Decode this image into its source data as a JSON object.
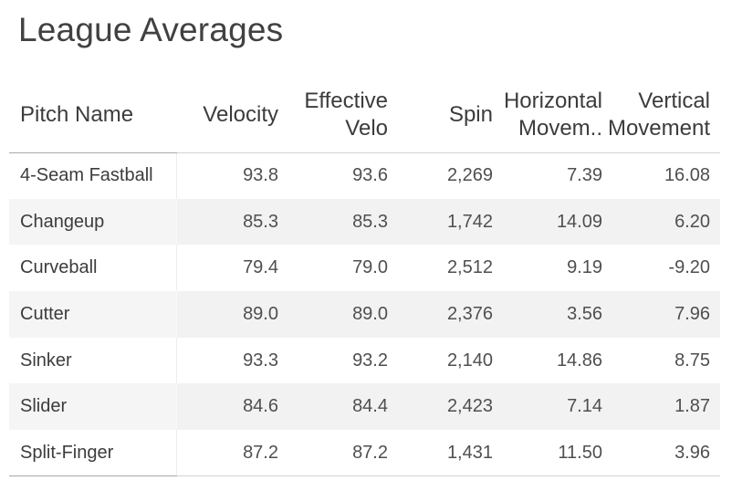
{
  "title": "League Averages",
  "table": {
    "columns": [
      {
        "id": "pitch_name",
        "label": "Pitch Name"
      },
      {
        "id": "velocity",
        "label": "Velocity"
      },
      {
        "id": "effective_velo",
        "label": "Effective\nVelo"
      },
      {
        "id": "spin",
        "label": "Spin"
      },
      {
        "id": "horizontal_movement",
        "label": "Horizontal\nMovem.."
      },
      {
        "id": "vertical_movement",
        "label": "Vertical\nMovement"
      }
    ],
    "rows": [
      {
        "pitch": "4-Seam Fastball",
        "values": [
          "93.8",
          "93.6",
          "2,269",
          "7.39",
          "16.08"
        ]
      },
      {
        "pitch": "Changeup",
        "values": [
          "85.3",
          "85.3",
          "1,742",
          "14.09",
          "6.20"
        ]
      },
      {
        "pitch": "Curveball",
        "values": [
          "79.4",
          "79.0",
          "2,512",
          "9.19",
          "-9.20"
        ]
      },
      {
        "pitch": "Cutter",
        "values": [
          "89.0",
          "89.0",
          "2,376",
          "3.56",
          "7.96"
        ]
      },
      {
        "pitch": "Sinker",
        "values": [
          "93.3",
          "93.2",
          "2,140",
          "14.86",
          "8.75"
        ]
      },
      {
        "pitch": "Slider",
        "values": [
          "84.6",
          "84.4",
          "2,423",
          "7.14",
          "1.87"
        ]
      },
      {
        "pitch": "Split-Finger",
        "values": [
          "87.2",
          "87.2",
          "1,431",
          "11.50",
          "3.96"
        ]
      }
    ]
  },
  "colors": {
    "row_band": "#f2f2f2",
    "row_band_header_col": "#f5f5f5",
    "border_dark": "#a8a8a8",
    "border_light": "#d2d2d2",
    "title_text": "#414141",
    "header_text": "#3c3c3c",
    "pitch_text": "#3c3c3c",
    "value_text": "#4f4f4f"
  },
  "chart_data": {
    "type": "table",
    "title": "League Averages",
    "columns": [
      "Pitch Name",
      "Velocity",
      "Effective Velo",
      "Spin",
      "Horizontal Movement",
      "Vertical Movement"
    ],
    "rows": [
      [
        "4-Seam Fastball",
        93.8,
        93.6,
        2269,
        7.39,
        16.08
      ],
      [
        "Changeup",
        85.3,
        85.3,
        1742,
        14.09,
        6.2
      ],
      [
        "Curveball",
        79.4,
        79.0,
        2512,
        9.19,
        -9.2
      ],
      [
        "Cutter",
        89.0,
        89.0,
        2376,
        3.56,
        7.96
      ],
      [
        "Sinker",
        93.3,
        93.2,
        2140,
        14.86,
        8.75
      ],
      [
        "Slider",
        84.6,
        84.4,
        2423,
        7.14,
        1.87
      ],
      [
        "Split-Finger",
        87.2,
        87.2,
        1431,
        11.5,
        3.96
      ]
    ],
    "layout": {
      "row_banding": true,
      "numeric_align": "right",
      "header_lines": 2,
      "grid": "off"
    }
  }
}
